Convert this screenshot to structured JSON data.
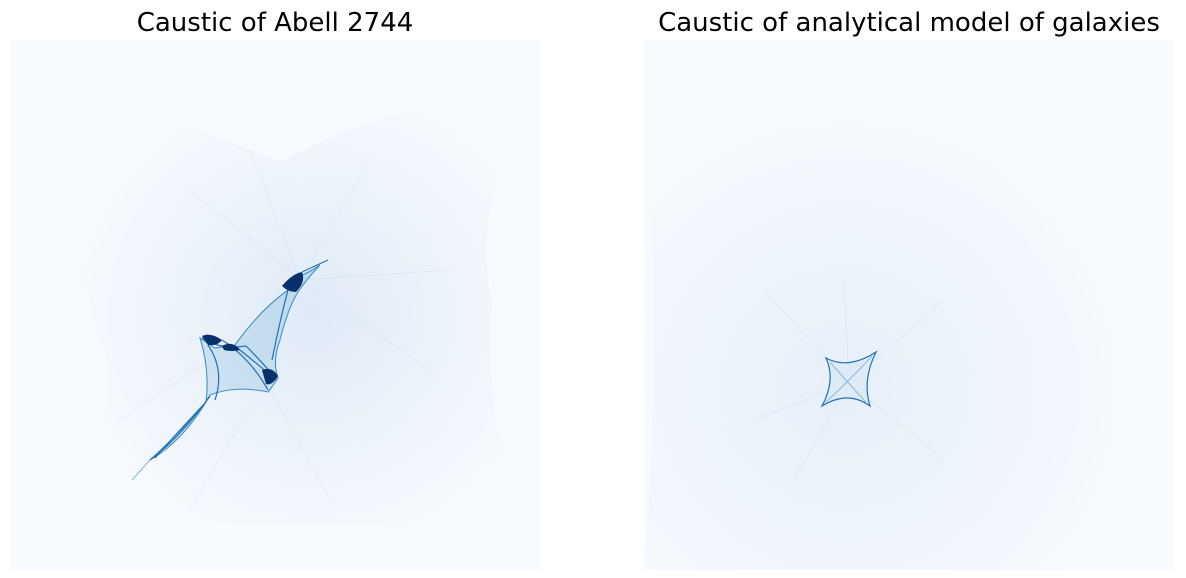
{
  "figure": {
    "background": "#ffffff",
    "colormap": "Blues",
    "panels": [
      {
        "title": "Caustic of Abell 2744",
        "shape": "irregular elongated caustic"
      },
      {
        "title": "Caustic of analytical model of galaxies",
        "shape": "astroid (four-cusped) caustic"
      }
    ]
  },
  "colors": {
    "background_field": "#f4f8fd",
    "light_blue": "#dbe9f6",
    "mid_blue": "#6aaed6",
    "dark_blue": "#08306b",
    "accent_blue": "#2171b5"
  }
}
